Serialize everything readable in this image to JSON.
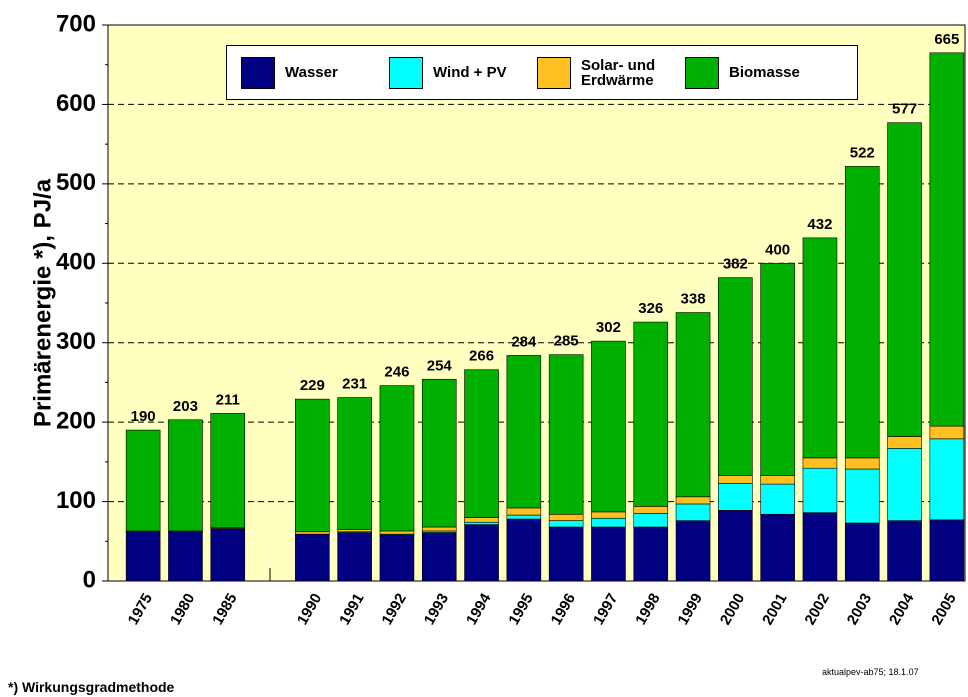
{
  "chart_data": {
    "type": "stacked_bar",
    "ylabel": "Primärenergie *), PJ/a",
    "footnote": "*) Wirkungsgradmethode",
    "source": "aktualpev-ab75; 18.1.07",
    "categories": [
      "1975",
      "1980",
      "1985",
      null,
      "1990",
      "1991",
      "1992",
      "1993",
      "1994",
      "1995",
      "1996",
      "1997",
      "1998",
      "1999",
      "2000",
      "2001",
      "2002",
      "2003",
      "2004",
      "2005"
    ],
    "series": [
      {
        "name": "Wasser",
        "color": "#000080",
        "values": [
          62,
          62,
          66,
          null,
          59,
          61,
          58,
          61,
          71,
          78,
          68,
          68,
          68,
          76,
          89,
          84,
          86,
          73,
          76,
          77
        ]
      },
      {
        "name": "Wind + PV",
        "color": "#00ffff",
        "values": [
          0,
          0,
          0,
          null,
          0,
          1,
          1,
          2,
          3,
          5,
          8,
          11,
          17,
          21,
          34,
          38,
          56,
          68,
          91,
          102
        ]
      },
      {
        "name": "Solar- und Erdwärme",
        "color": "#ffc020",
        "values": [
          1,
          1,
          1,
          null,
          3,
          3,
          4,
          5,
          6,
          9,
          8,
          8,
          9,
          9,
          10,
          11,
          13,
          14,
          15,
          16
        ]
      },
      {
        "name": "Biomasse",
        "color": "#00b000",
        "values": [
          127,
          140,
          144,
          null,
          167,
          166,
          183,
          186,
          186,
          192,
          201,
          215,
          232,
          232,
          249,
          267,
          277,
          367,
          395,
          470
        ]
      }
    ],
    "totals": [
      190,
      203,
      211,
      null,
      229,
      231,
      246,
      254,
      266,
      284,
      285,
      302,
      326,
      338,
      382,
      400,
      432,
      522,
      577,
      665
    ],
    "ylim": [
      0,
      700
    ],
    "yticks": [
      0,
      100,
      200,
      300,
      400,
      500,
      600,
      700
    ],
    "grid": true
  }
}
